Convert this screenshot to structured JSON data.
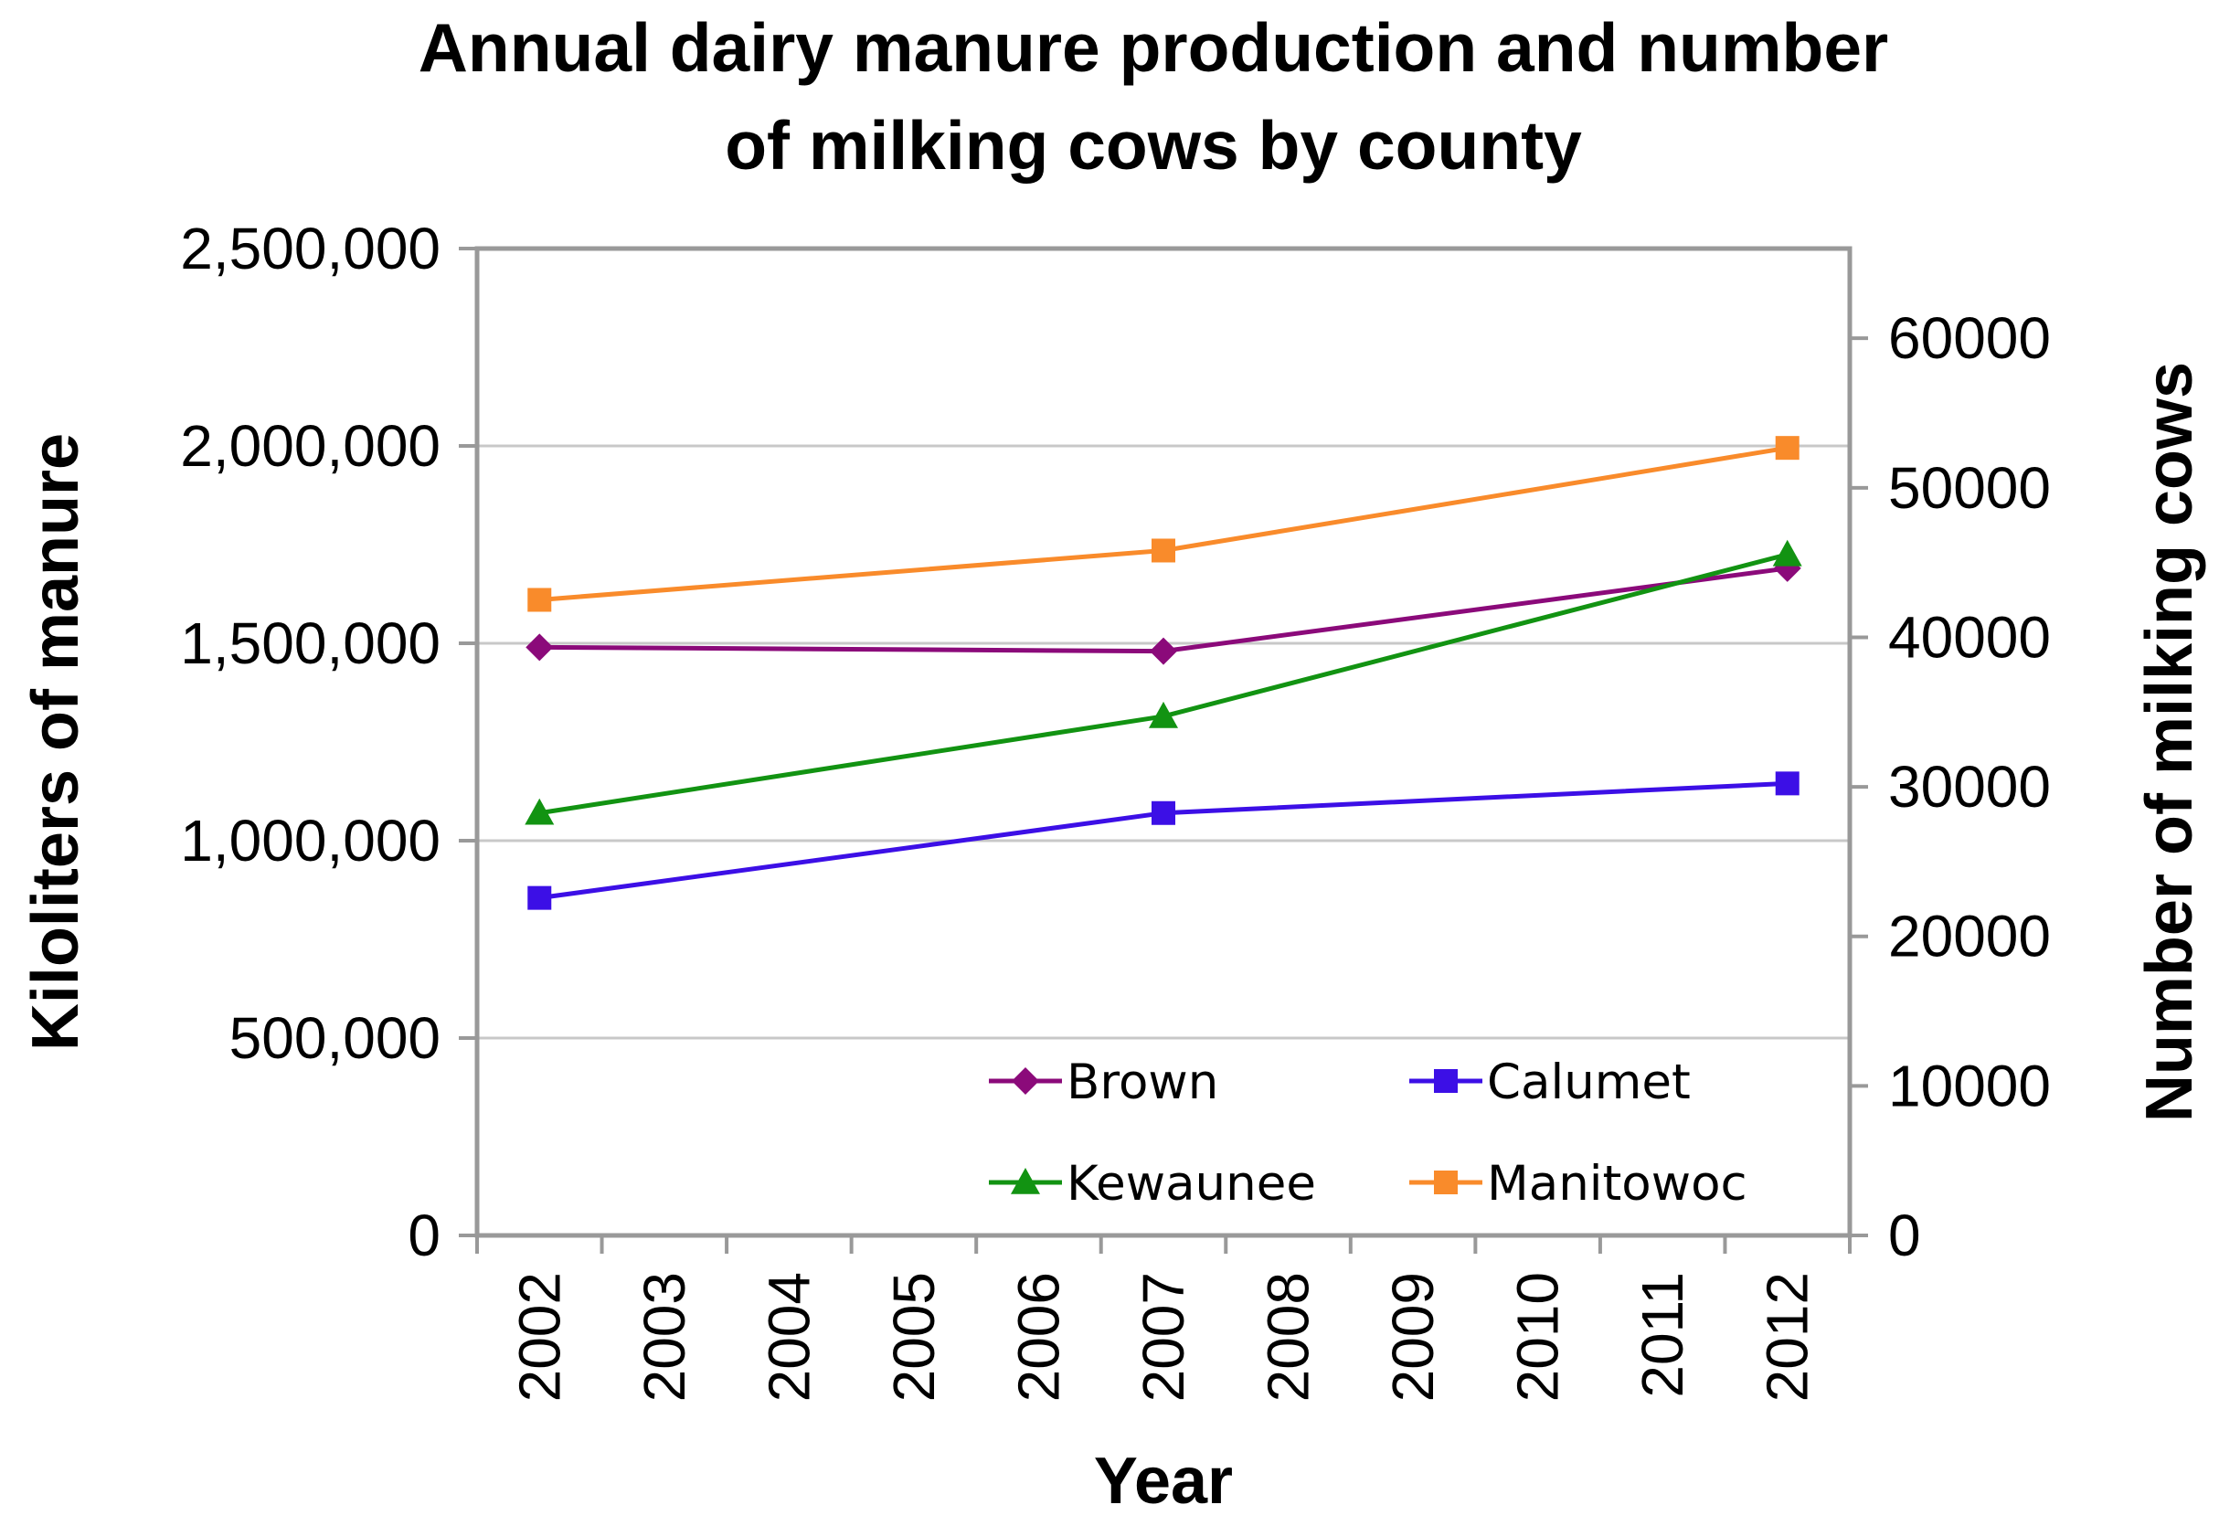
{
  "chart_data": {
    "type": "line",
    "title_lines": [
      "Annual dairy manure production and number",
      "of milking cows by county"
    ],
    "xlabel": "Year",
    "ylabel": "Kiloliters of manure",
    "y2label": "Number of milking cows",
    "categories": [
      "2002",
      "2003",
      "2004",
      "2005",
      "2006",
      "2007",
      "2008",
      "2009",
      "2010",
      "2011",
      "2012"
    ],
    "ylim": [
      0,
      2500000
    ],
    "y_ticks": [
      "0",
      "500,000",
      "1,000,000",
      "1,500,000",
      "2,000,000",
      "2,500,000"
    ],
    "y2lim": [
      0,
      66000
    ],
    "y2_ticks": [
      "0",
      "10000",
      "20000",
      "30000",
      "40000",
      "50000",
      "60000"
    ],
    "grid": true,
    "legend_position": "bottom-right",
    "series": [
      {
        "name": "Brown",
        "color": "#8b0a7a",
        "marker": "diamond",
        "x": [
          "2002",
          "2007",
          "2012"
        ],
        "values": [
          1490000,
          1480000,
          1690000
        ]
      },
      {
        "name": "Calumet",
        "color": "#3c0fe6",
        "marker": "square",
        "x": [
          "2002",
          "2007",
          "2012"
        ],
        "values": [
          855000,
          1070000,
          1145000
        ]
      },
      {
        "name": "Kewaunee",
        "color": "#129312",
        "marker": "triangle",
        "x": [
          "2002",
          "2007",
          "2012"
        ],
        "values": [
          1070000,
          1315000,
          1725000
        ]
      },
      {
        "name": "Manitowoc",
        "color": "#f98b2b",
        "marker": "square",
        "x": [
          "2002",
          "2007",
          "2012"
        ],
        "values": [
          1610000,
          1735000,
          1995000
        ]
      }
    ]
  }
}
